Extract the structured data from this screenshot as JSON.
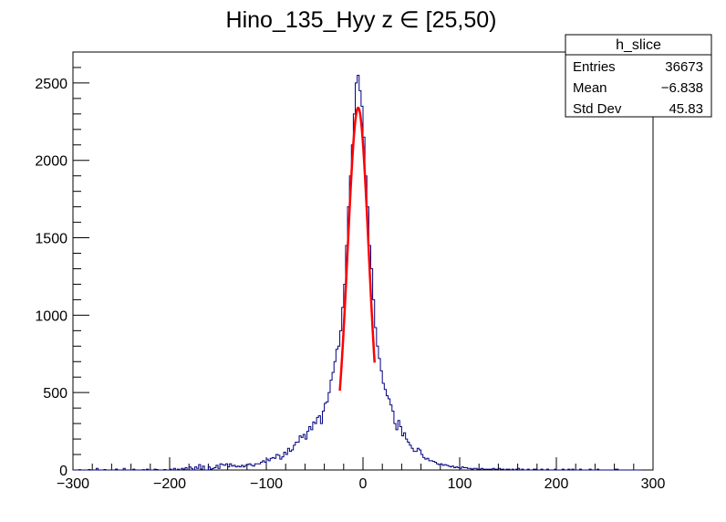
{
  "chart_data": {
    "type": "histogram",
    "title": "Hino_135_Hyy z  ∈ [25,50)",
    "xlabel": "",
    "ylabel": "",
    "xlim": [
      -300,
      300
    ],
    "ylim": [
      0,
      2700
    ],
    "x_ticks": [
      -300,
      -200,
      -100,
      0,
      100,
      200,
      300
    ],
    "y_ticks": [
      0,
      500,
      1000,
      1500,
      2000,
      2500
    ],
    "histogram_color": "#000080",
    "fit_color": "#ff0000",
    "bin_width": 2,
    "bins_x": [
      -300,
      -298,
      -296,
      -294,
      -292,
      -290,
      -288,
      -286,
      -284,
      -282,
      -280,
      -278,
      -276,
      -274,
      -272,
      -270,
      -268,
      -266,
      -264,
      -262,
      -260,
      -258,
      -256,
      -254,
      -252,
      -250,
      -248,
      -246,
      -244,
      -242,
      -240,
      -238,
      -236,
      -234,
      -232,
      -230,
      -228,
      -226,
      -224,
      -222,
      -220,
      -218,
      -216,
      -214,
      -212,
      -210,
      -208,
      -206,
      -204,
      -202,
      -200,
      -198,
      -196,
      -194,
      -192,
      -190,
      -188,
      -186,
      -184,
      -182,
      -180,
      -178,
      -176,
      -174,
      -172,
      -170,
      -168,
      -166,
      -164,
      -162,
      -160,
      -158,
      -156,
      -154,
      -152,
      -150,
      -148,
      -146,
      -144,
      -142,
      -140,
      -138,
      -136,
      -134,
      -132,
      -130,
      -128,
      -126,
      -124,
      -122,
      -120,
      -118,
      -116,
      -114,
      -112,
      -110,
      -108,
      -106,
      -104,
      -102,
      -100,
      -98,
      -96,
      -94,
      -92,
      -90,
      -88,
      -86,
      -84,
      -82,
      -80,
      -78,
      -76,
      -74,
      -72,
      -70,
      -68,
      -66,
      -64,
      -62,
      -60,
      -58,
      -56,
      -54,
      -52,
      -50,
      -48,
      -46,
      -44,
      -42,
      -40,
      -38,
      -36,
      -34,
      -32,
      -30,
      -28,
      -26,
      -24,
      -22,
      -20,
      -18,
      -16,
      -14,
      -12,
      -10,
      -8,
      -6,
      -4,
      -2,
      0,
      2,
      4,
      6,
      8,
      10,
      12,
      14,
      16,
      18,
      20,
      22,
      24,
      26,
      28,
      30,
      32,
      34,
      36,
      38,
      40,
      42,
      44,
      46,
      48,
      50,
      52,
      54,
      56,
      58,
      60,
      62,
      64,
      66,
      68,
      70,
      72,
      74,
      76,
      78,
      80,
      82,
      84,
      86,
      88,
      90,
      92,
      94,
      96,
      98,
      100,
      102,
      104,
      106,
      108,
      110,
      112,
      114,
      116,
      118,
      120,
      122,
      124,
      126,
      128,
      130,
      132,
      134,
      136,
      138,
      140,
      142,
      144,
      146,
      148,
      150,
      152,
      154,
      156,
      158,
      160,
      162,
      164,
      166,
      168,
      170,
      172,
      174,
      176,
      178,
      180,
      182,
      184,
      186,
      188,
      190,
      192,
      194,
      196,
      198,
      200,
      202,
      204,
      206,
      208,
      210,
      212,
      214,
      216,
      218,
      220,
      222,
      224,
      226,
      228,
      230,
      232,
      234,
      236,
      238,
      240,
      242,
      244,
      246,
      248,
      250,
      252,
      254,
      256,
      258,
      260,
      262,
      264,
      266,
      268,
      270,
      272,
      274,
      276,
      278,
      280,
      282,
      284,
      286,
      288,
      290,
      292,
      294,
      296,
      298
    ],
    "bins_counts": [
      0,
      0,
      0,
      2,
      0,
      0,
      0,
      0,
      3,
      0,
      0,
      0,
      10,
      0,
      0,
      0,
      3,
      0,
      0,
      0,
      0,
      0,
      6,
      0,
      0,
      0,
      10,
      0,
      0,
      0,
      0,
      5,
      0,
      0,
      0,
      0,
      2,
      0,
      5,
      0,
      0,
      0,
      5,
      3,
      0,
      0,
      0,
      3,
      0,
      0,
      5,
      0,
      10,
      0,
      5,
      0,
      10,
      5,
      15,
      0,
      20,
      10,
      0,
      20,
      10,
      35,
      5,
      25,
      0,
      0,
      20,
      5,
      10,
      15,
      30,
      10,
      40,
      35,
      30,
      40,
      20,
      40,
      25,
      30,
      20,
      25,
      20,
      30,
      20,
      30,
      35,
      40,
      30,
      25,
      40,
      40,
      40,
      50,
      60,
      50,
      70,
      60,
      75,
      80,
      75,
      100,
      95,
      70,
      85,
      115,
      100,
      140,
      120,
      130,
      160,
      180,
      180,
      220,
      210,
      230,
      200,
      250,
      280,
      260,
      310,
      300,
      340,
      350,
      300,
      380,
      430,
      440,
      500,
      580,
      630,
      700,
      780,
      800,
      900,
      1050,
      1200,
      1450,
      1700,
      1900,
      2100,
      2300,
      2500,
      2550,
      2450,
      2350,
      2150,
      1900,
      1700,
      1450,
      1300,
      1100,
      920,
      800,
      720,
      640,
      560,
      520,
      480,
      460,
      420,
      380,
      300,
      260,
      320,
      280,
      220,
      240,
      200,
      180,
      160,
      140,
      120,
      120,
      140,
      130,
      100,
      80,
      70,
      75,
      60,
      60,
      55,
      50,
      40,
      35,
      40,
      30,
      35,
      30,
      25,
      20,
      25,
      15,
      20,
      15,
      10,
      20,
      15,
      15,
      10,
      10,
      5,
      10,
      10,
      5,
      5,
      10,
      5,
      5,
      5,
      5,
      5,
      10,
      5,
      5,
      10,
      5,
      5,
      0,
      5,
      5,
      0,
      5,
      0,
      5,
      10,
      0,
      5,
      0,
      0,
      5,
      0,
      0,
      5,
      5,
      0,
      0,
      5,
      0,
      0,
      5,
      0,
      0,
      0,
      5,
      0,
      0,
      0,
      5,
      0,
      0,
      5,
      0,
      5,
      0,
      0,
      0,
      5,
      0,
      0,
      0,
      0,
      5,
      0,
      0,
      0,
      5,
      0,
      0,
      0,
      0,
      0,
      0,
      0,
      0,
      5,
      5,
      0,
      0,
      0,
      0,
      0,
      0,
      0,
      0,
      0,
      0,
      0,
      0
    ],
    "fit": {
      "type": "gaussian",
      "x_range": [
        -24,
        12
      ],
      "mean": -5,
      "sigma": 10.9,
      "amplitude": 2340
    },
    "stats_box": {
      "title": "h_slice",
      "rows": [
        {
          "label": "Entries",
          "value": "36673"
        },
        {
          "label": "Mean",
          "value": "−6.838"
        },
        {
          "label": "Std Dev",
          "value": "45.83"
        }
      ]
    }
  }
}
